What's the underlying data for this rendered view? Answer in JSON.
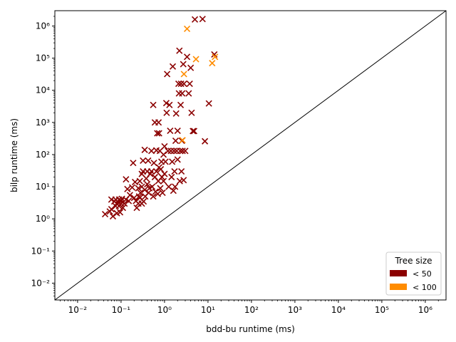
{
  "chart_data": {
    "type": "scatter",
    "title": "",
    "xlabel": "bdd-bu runtime (ms)",
    "ylabel": "bilp runtime (ms)",
    "xscale": "log",
    "yscale": "log",
    "xlim": [
      0.003,
      3000000
    ],
    "ylim": [
      0.003,
      3000000
    ],
    "x_tick_labels": [
      "10⁻²",
      "10⁻¹",
      "10⁰",
      "10¹",
      "10²",
      "10³",
      "10⁴",
      "10⁵",
      "10⁶"
    ],
    "y_tick_labels": [
      "10⁻²",
      "10⁻¹",
      "10⁰",
      "10¹",
      "10²",
      "10³",
      "10⁴",
      "10⁵",
      "10⁶"
    ],
    "x_ticks": [
      0.01,
      0.1,
      1,
      10,
      100,
      1000,
      10000,
      100000,
      1000000
    ],
    "y_ticks": [
      0.01,
      0.1,
      1,
      10,
      100,
      1000,
      10000,
      100000,
      1000000
    ],
    "reference_line": "y = x",
    "grid": false,
    "marker": "x",
    "legend": {
      "title": "Tree size",
      "placement": "lower-right",
      "entries": [
        {
          "label": "< 50",
          "color": "#8b0000"
        },
        {
          "label": "< 100",
          "color": "#ff8c00"
        }
      ]
    },
    "series": [
      {
        "name": "< 50",
        "color": "#8b0000",
        "points": [
          [
            0.043,
            1.4
          ],
          [
            0.055,
            1.7
          ],
          [
            0.06,
            2.0
          ],
          [
            0.06,
            4.0
          ],
          [
            0.065,
            1.2
          ],
          [
            0.07,
            3.5
          ],
          [
            0.075,
            4.0
          ],
          [
            0.075,
            2.5
          ],
          [
            0.08,
            1.5
          ],
          [
            0.08,
            3.0
          ],
          [
            0.085,
            3.3
          ],
          [
            0.09,
            4.0
          ],
          [
            0.09,
            2.5
          ],
          [
            0.095,
            1.6
          ],
          [
            0.1,
            3.6
          ],
          [
            0.1,
            3.0
          ],
          [
            0.105,
            4.2
          ],
          [
            0.11,
            2.2
          ],
          [
            0.12,
            3.0
          ],
          [
            0.13,
            17
          ],
          [
            0.13,
            4.0
          ],
          [
            0.14,
            8.5
          ],
          [
            0.15,
            3.6
          ],
          [
            0.16,
            5.5
          ],
          [
            0.18,
            9.5
          ],
          [
            0.19,
            55
          ],
          [
            0.2,
            4.5
          ],
          [
            0.21,
            14
          ],
          [
            0.22,
            3.6
          ],
          [
            0.23,
            2.2
          ],
          [
            0.25,
            3.0
          ],
          [
            0.25,
            9.0
          ],
          [
            0.26,
            5.0
          ],
          [
            0.27,
            15
          ],
          [
            0.27,
            4.5
          ],
          [
            0.28,
            6.5
          ],
          [
            0.3,
            3.0
          ],
          [
            0.3,
            25
          ],
          [
            0.3,
            10
          ],
          [
            0.32,
            30
          ],
          [
            0.32,
            65
          ],
          [
            0.33,
            3.5
          ],
          [
            0.35,
            140
          ],
          [
            0.35,
            8.0
          ],
          [
            0.36,
            5.0
          ],
          [
            0.38,
            18
          ],
          [
            0.4,
            30
          ],
          [
            0.4,
            12
          ],
          [
            0.42,
            65
          ],
          [
            0.43,
            6.5
          ],
          [
            0.45,
            9.0
          ],
          [
            0.47,
            25
          ],
          [
            0.5,
            30
          ],
          [
            0.5,
            130
          ],
          [
            0.52,
            10
          ],
          [
            0.55,
            3500
          ],
          [
            0.55,
            5.0
          ],
          [
            0.57,
            55
          ],
          [
            0.6,
            20
          ],
          [
            0.6,
            1000
          ],
          [
            0.62,
            7.0
          ],
          [
            0.65,
            30
          ],
          [
            0.65,
            135
          ],
          [
            0.68,
            460
          ],
          [
            0.7,
            6.0
          ],
          [
            0.72,
            15
          ],
          [
            0.73,
            1000
          ],
          [
            0.75,
            40
          ],
          [
            0.75,
            460
          ],
          [
            0.78,
            130
          ],
          [
            0.8,
            9.0
          ],
          [
            0.82,
            35
          ],
          [
            0.85,
            60
          ],
          [
            0.87,
            20
          ],
          [
            0.9,
            6.5
          ],
          [
            0.95,
            15
          ],
          [
            0.95,
            100
          ],
          [
            1.0,
            180
          ],
          [
            1.0,
            25
          ],
          [
            1.05,
            60
          ],
          [
            1.1,
            4000
          ],
          [
            1.12,
            2000
          ],
          [
            1.15,
            32000
          ],
          [
            1.2,
            130
          ],
          [
            1.25,
            10
          ],
          [
            1.3,
            3500
          ],
          [
            1.35,
            550
          ],
          [
            1.4,
            130
          ],
          [
            1.45,
            20
          ],
          [
            1.5,
            60
          ],
          [
            1.55,
            55000
          ],
          [
            1.6,
            7.5
          ],
          [
            1.65,
            130
          ],
          [
            1.7,
            30
          ],
          [
            1.75,
            10
          ],
          [
            1.8,
            270
          ],
          [
            1.85,
            1900
          ],
          [
            1.9,
            130
          ],
          [
            2.0,
            550
          ],
          [
            2.0,
            70
          ],
          [
            2.1,
            16000
          ],
          [
            2.15,
            8000
          ],
          [
            2.2,
            170000
          ],
          [
            2.25,
            15
          ],
          [
            2.3,
            130
          ],
          [
            2.35,
            3500
          ],
          [
            2.4,
            16000
          ],
          [
            2.45,
            30
          ],
          [
            2.5,
            270
          ],
          [
            2.55,
            8000
          ],
          [
            2.6,
            130
          ],
          [
            2.7,
            65000
          ],
          [
            2.75,
            16
          ],
          [
            2.8,
            16000
          ],
          [
            3.0,
            130
          ],
          [
            3.3,
            110000
          ],
          [
            3.6,
            8000
          ],
          [
            3.8,
            16000
          ],
          [
            4.0,
            50000
          ],
          [
            4.2,
            2000
          ],
          [
            4.5,
            540
          ],
          [
            4.8,
            540
          ],
          [
            5.0,
            1600000
          ],
          [
            7.5,
            1650000
          ],
          [
            8.5,
            260
          ],
          [
            10.5,
            3900
          ],
          [
            14.0,
            130000
          ]
        ]
      },
      {
        "name": "< 100",
        "color": "#ff8c00",
        "points": [
          [
            2.6,
            280
          ],
          [
            2.8,
            32000
          ],
          [
            3.3,
            820000
          ],
          [
            5.3,
            93000
          ],
          [
            12.5,
            70000
          ],
          [
            14.5,
            110000
          ]
        ]
      }
    ]
  }
}
